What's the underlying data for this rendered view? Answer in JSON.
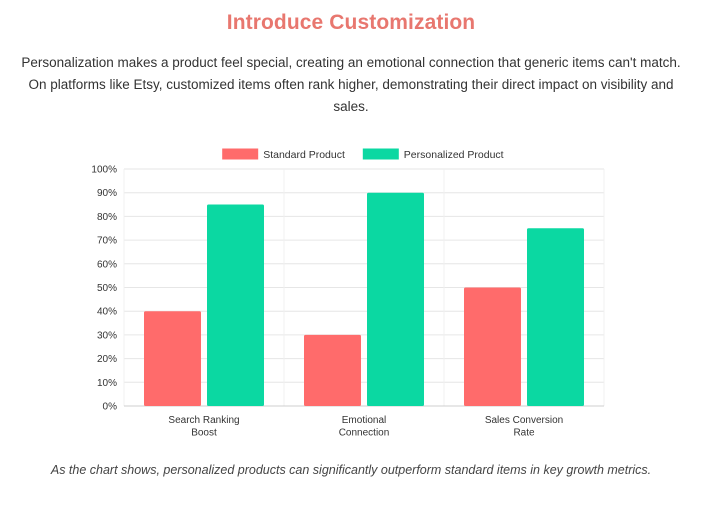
{
  "page": {
    "title": "Introduce Customization",
    "intro": "Personalization makes a product feel special, creating an emotional connection that generic items can't match. On platforms like Etsy, customized items often rank higher, demonstrating their direct impact on visibility and sales.",
    "footnote": "As the chart shows, personalized products can significantly outperform standard items in key growth metrics."
  },
  "colors": {
    "title": "#e8776f",
    "standard": "#ff6b6b",
    "personalized": "#0bd8a2",
    "grid": "#e6e6e6",
    "axis_text": "#333333"
  },
  "chart_data": {
    "type": "bar",
    "categories": [
      [
        "Search Ranking",
        "Boost"
      ],
      [
        "Emotional",
        "Connection"
      ],
      [
        "Sales Conversion",
        "Rate"
      ]
    ],
    "series": [
      {
        "name": "Standard Product",
        "values": [
          40,
          30,
          50
        ],
        "color": "#ff6b6b"
      },
      {
        "name": "Personalized Product",
        "values": [
          85,
          90,
          75
        ],
        "color": "#0bd8a2"
      }
    ],
    "ylim": [
      0,
      100
    ],
    "yticks": [
      0,
      10,
      20,
      30,
      40,
      50,
      60,
      70,
      80,
      90,
      100
    ],
    "ytick_suffix": "%",
    "legend": "top-center",
    "grid": true
  }
}
